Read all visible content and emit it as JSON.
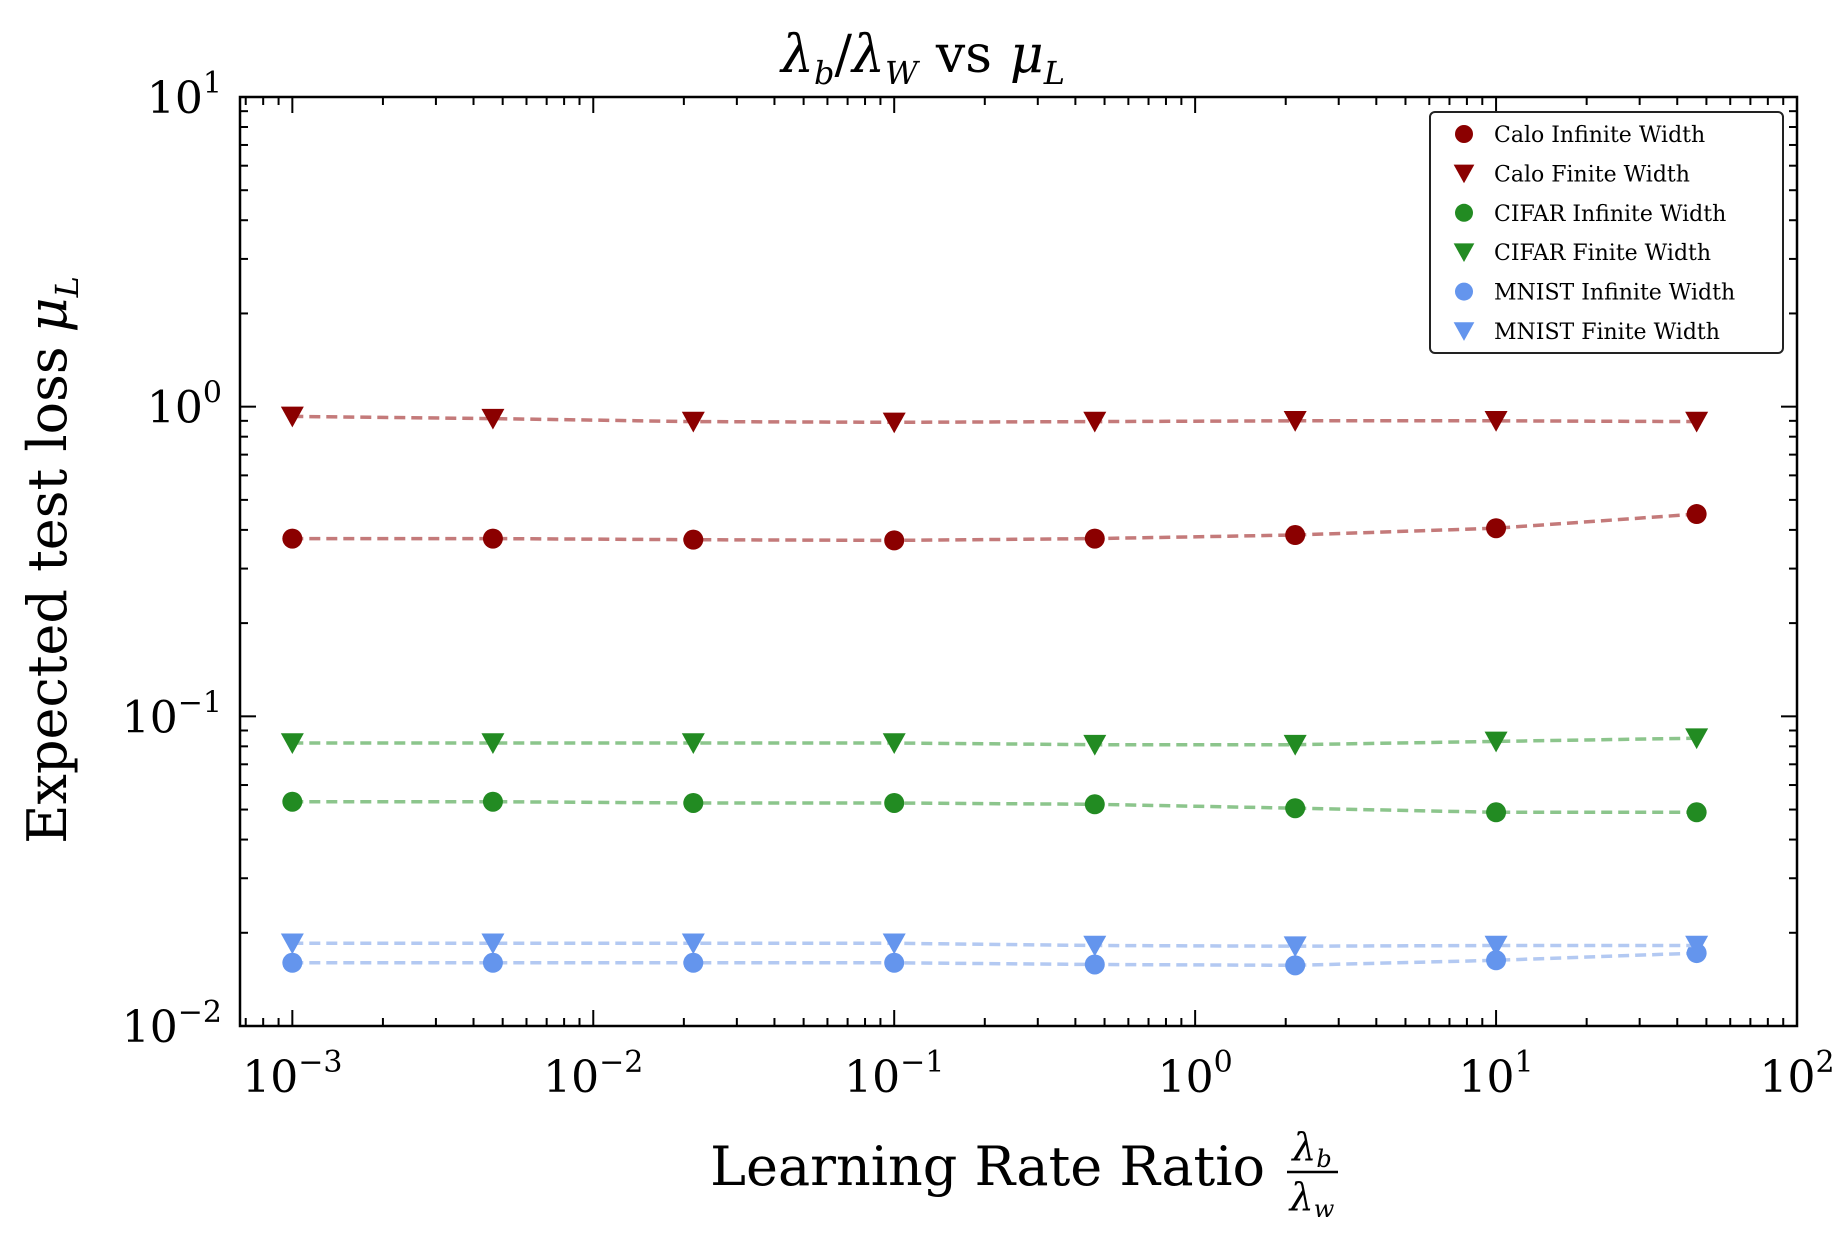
{
  "chart_data": {
    "type": "scatter",
    "title": "λb/λW vs μL",
    "title_parts": {
      "lambda1": "λ",
      "sub1": "b",
      "slash": "/",
      "lambda2": "λ",
      "sub2": "W",
      "vs": "vs",
      "mu": "μ",
      "musub": "L"
    },
    "xlabel": "Learning Rate Ratio λb/λw",
    "xlabel_parts": {
      "text": "Learning Rate Ratio",
      "num": "λ",
      "num_sub": "b",
      "den": "λ",
      "den_sub": "w"
    },
    "ylabel": "Expected test loss μL",
    "ylabel_parts": {
      "text": "Expected test loss",
      "mu": "μ",
      "musub": "L"
    },
    "xscale": "log",
    "yscale": "log",
    "xlim": [
      0.00067,
      100
    ],
    "ylim": [
      0.01,
      10
    ],
    "xticks": [
      {
        "value": 0.001,
        "base": "10",
        "exp": "−3"
      },
      {
        "value": 0.01,
        "base": "10",
        "exp": "−2"
      },
      {
        "value": 0.1,
        "base": "10",
        "exp": "−1"
      },
      {
        "value": 1,
        "base": "10",
        "exp": "0"
      },
      {
        "value": 10,
        "base": "10",
        "exp": "1"
      },
      {
        "value": 100,
        "base": "10",
        "exp": "2"
      }
    ],
    "yticks": [
      {
        "value": 0.01,
        "base": "10",
        "exp": "−2"
      },
      {
        "value": 0.1,
        "base": "10",
        "exp": "−1"
      },
      {
        "value": 1,
        "base": "10",
        "exp": "0"
      },
      {
        "value": 10,
        "base": "10",
        "exp": "1"
      }
    ],
    "grid": false,
    "legend_position": "top-right",
    "x": [
      0.001,
      0.00464,
      0.0215,
      0.1,
      0.464,
      2.15,
      10,
      46.4
    ],
    "series": [
      {
        "name": "Calo Infinite Width",
        "marker": "circle",
        "color": "#8b0000",
        "line_color": "#c47a7a",
        "values": [
          0.375,
          0.375,
          0.372,
          0.37,
          0.375,
          0.385,
          0.405,
          0.45
        ]
      },
      {
        "name": "Calo Finite Width",
        "marker": "triangle-down",
        "color": "#8b0000",
        "line_color": "#c47a7a",
        "values": [
          0.93,
          0.915,
          0.895,
          0.89,
          0.895,
          0.9,
          0.9,
          0.895
        ]
      },
      {
        "name": "CIFAR Infinite Width",
        "marker": "circle",
        "color": "#228b22",
        "line_color": "#8cc58c",
        "values": [
          0.053,
          0.053,
          0.0525,
          0.0525,
          0.052,
          0.0505,
          0.049,
          0.049
        ]
      },
      {
        "name": "CIFAR Finite Width",
        "marker": "triangle-down",
        "color": "#228b22",
        "line_color": "#8cc58c",
        "values": [
          0.082,
          0.082,
          0.082,
          0.082,
          0.081,
          0.081,
          0.083,
          0.085
        ]
      },
      {
        "name": "MNIST Infinite Width",
        "marker": "circle",
        "color": "#6495ed",
        "line_color": "#b3c9f2",
        "values": [
          0.016,
          0.016,
          0.016,
          0.016,
          0.0158,
          0.0157,
          0.0163,
          0.0172
        ]
      },
      {
        "name": "MNIST Finite Width",
        "marker": "triangle-down",
        "color": "#6495ed",
        "line_color": "#b3c9f2",
        "values": [
          0.0185,
          0.0185,
          0.0185,
          0.0185,
          0.0182,
          0.0181,
          0.0182,
          0.0182
        ]
      }
    ]
  }
}
